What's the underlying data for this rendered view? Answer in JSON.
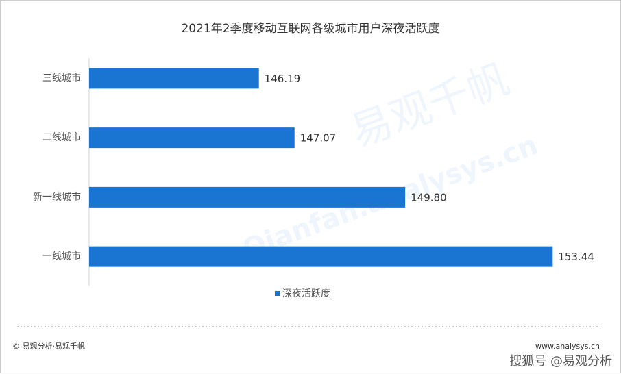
{
  "chart_data": {
    "type": "bar",
    "orientation": "horizontal",
    "title": "2021年2季度移动互联网各级城市用户深夜活跃度",
    "categories": [
      "三线城市",
      "二线城市",
      "新一线城市",
      "一线城市"
    ],
    "series": [
      {
        "name": "深夜活跃度",
        "color": "#1a75d2",
        "values": [
          146.19,
          147.07,
          149.8,
          153.44
        ],
        "value_labels": [
          "146.19",
          "147.07",
          "149.80",
          "153.44"
        ]
      }
    ],
    "xlim": [
      142,
      154.5
    ],
    "watermark": "易观千帆",
    "watermark_url": "Qianfan.analysys.cn",
    "footer_left": "© 易观分析·易观千帆",
    "footer_right": "www.analysys.cn",
    "footer_stamp": "搜狐号 @易观分析"
  }
}
